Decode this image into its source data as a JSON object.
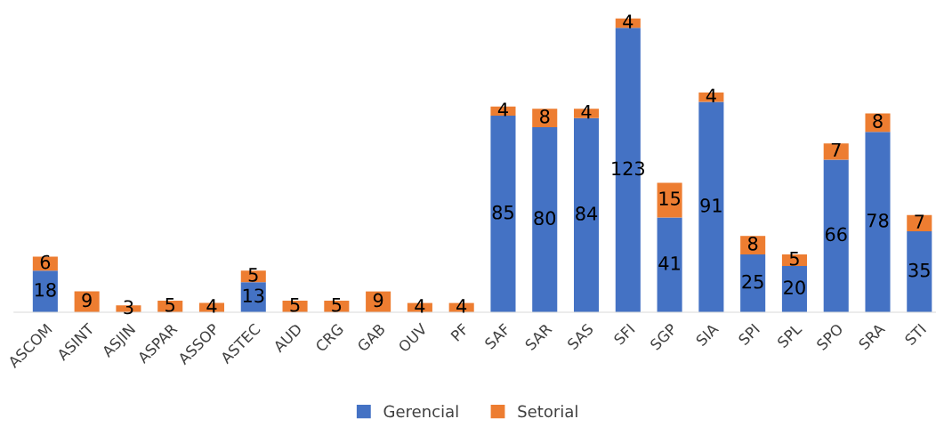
{
  "chart_data": {
    "type": "bar",
    "stacked": true,
    "categories": [
      "ASCOM",
      "ASINT",
      "ASJIN",
      "ASPAR",
      "ASSOP",
      "ASTEC",
      "AUD",
      "CRG",
      "GAB",
      "OUV",
      "PF",
      "SAF",
      "SAR",
      "SAS",
      "SFI",
      "SGP",
      "SIA",
      "SPI",
      "SPL",
      "SPO",
      "SRA",
      "STI"
    ],
    "series": [
      {
        "name": "Gerencial",
        "color": "#4472c4",
        "values": [
          18,
          null,
          null,
          null,
          null,
          13,
          null,
          null,
          null,
          null,
          null,
          85,
          80,
          84,
          123,
          41,
          91,
          25,
          20,
          66,
          78,
          35
        ]
      },
      {
        "name": "Setorial",
        "color": "#ed7d31",
        "values": [
          6,
          9,
          3,
          5,
          4,
          5,
          5,
          5,
          9,
          4,
          4,
          4,
          8,
          4,
          4,
          15,
          4,
          8,
          5,
          7,
          8,
          7
        ]
      }
    ],
    "tick_labels": "x",
    "data_labels": true,
    "legend": "bottom"
  }
}
